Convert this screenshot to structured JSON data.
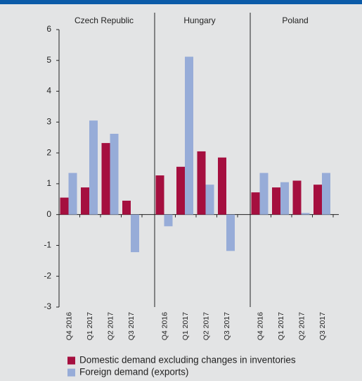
{
  "chart_data": {
    "type": "bar",
    "groups": [
      "Czech Republic",
      "Hungary",
      "Poland"
    ],
    "categories": [
      "Q4 2016",
      "Q1 2017",
      "Q2 2017",
      "Q3 2017"
    ],
    "series": [
      {
        "name": "Domestic demand excluding changes in inventories",
        "color": "#a50f3f",
        "values": [
          [
            0.55,
            0.88,
            2.32,
            0.45
          ],
          [
            1.27,
            1.55,
            2.05,
            1.85
          ],
          [
            0.72,
            0.88,
            1.1,
            0.97
          ]
        ]
      },
      {
        "name": "Foreign demand (exports)",
        "color": "#97acd8",
        "values": [
          [
            1.35,
            3.05,
            2.62,
            -1.22
          ],
          [
            -0.38,
            5.12,
            0.97,
            -1.18
          ],
          [
            1.35,
            1.05,
            0.05,
            1.35
          ]
        ]
      }
    ],
    "ylim": [
      -3,
      6
    ],
    "yticks": [
      -3,
      -2,
      -1,
      0,
      1,
      2,
      3,
      4,
      5,
      6
    ]
  }
}
